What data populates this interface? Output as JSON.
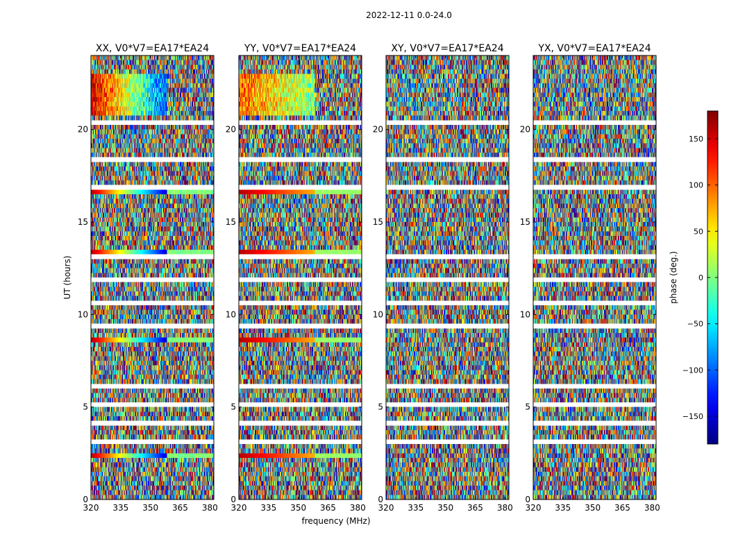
{
  "figure": {
    "suptitle": "2022-12-11 0.0-24.0",
    "shared_xlabel": "frequency (MHz)",
    "shared_ylabel": "UT (hours)"
  },
  "colorbar": {
    "label": "phase (deg.)",
    "range": [
      -180,
      180
    ],
    "ticks": [
      -150,
      -100,
      -50,
      0,
      50,
      100,
      150
    ],
    "tick_labels": [
      "−150",
      "−100",
      "−50",
      "0",
      "50",
      "100",
      "150"
    ],
    "colormap": "jet"
  },
  "chart_data": [
    {
      "type": "heatmap",
      "title": "XX, V0*V7=EA17*EA24",
      "xlabel": "frequency (MHz)",
      "ylabel": "UT (hours)",
      "xlim": [
        320,
        382
      ],
      "ylim": [
        0,
        24
      ],
      "xticks": [
        320,
        335,
        350,
        365,
        380
      ],
      "yticks": [
        0,
        5,
        10,
        15,
        20
      ],
      "value": "phase (deg.)",
      "value_range": [
        -180,
        180
      ],
      "cells": "noisy phase scatter across all channels; coherent phase ramp at UT ~20.5-23 for 320-350 MHz (about +150 at 320 MHz to -120 at 350 MHz); strong calibrator rows near UT 2.5, 8.6, 13.4, 16.7"
    },
    {
      "type": "heatmap",
      "title": "YY, V0*V7=EA17*EA24",
      "xlabel": "frequency (MHz)",
      "ylabel": "UT (hours)",
      "xlim": [
        320,
        382
      ],
      "ylim": [
        0,
        24
      ],
      "xticks": [
        320,
        335,
        350,
        365,
        380
      ],
      "yticks": [
        0,
        5,
        10,
        15,
        20
      ],
      "value": "phase (deg.)",
      "value_range": [
        -180,
        180
      ],
      "cells": "noisy phase scatter; coherent phase (about +50 to +130) at UT ~20.5-23 for 320-360 MHz; strong calibrator rows near UT 2.5, 8.6, 13.4, 16.7"
    },
    {
      "type": "heatmap",
      "title": "XY, V0*V7=EA17*EA24",
      "xlabel": "frequency (MHz)",
      "ylabel": "UT (hours)",
      "xlim": [
        320,
        382
      ],
      "ylim": [
        0,
        24
      ],
      "xticks": [
        320,
        335,
        350,
        365,
        380
      ],
      "yticks": [
        0,
        5,
        10,
        15,
        20
      ],
      "value": "phase (deg.)",
      "value_range": [
        -180,
        180
      ],
      "cells": "noisy phase scatter throughout with flagged (blank) time rows"
    },
    {
      "type": "heatmap",
      "title": "YX, V0*V7=EA17*EA24",
      "xlabel": "frequency (MHz)",
      "ylabel": "UT (hours)",
      "xlim": [
        320,
        382
      ],
      "ylim": [
        0,
        24
      ],
      "xticks": [
        320,
        335,
        350,
        365,
        380
      ],
      "yticks": [
        0,
        5,
        10,
        15,
        20
      ],
      "value": "phase (deg.)",
      "value_range": [
        -180,
        180
      ],
      "cells": "noisy phase scatter throughout with flagged (blank) time rows"
    }
  ]
}
